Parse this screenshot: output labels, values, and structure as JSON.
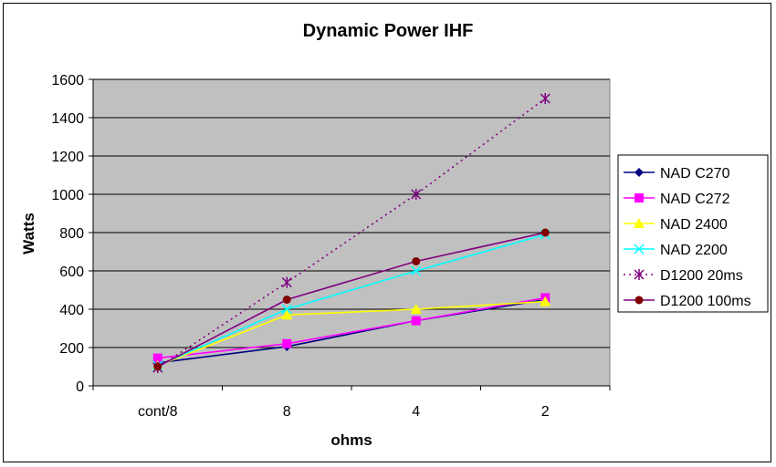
{
  "chart_data": {
    "type": "line",
    "title": "Dynamic Power IHF",
    "xlabel": "ohms",
    "ylabel": "Watts",
    "categories": [
      "cont/8",
      "8",
      "4",
      "2"
    ],
    "ylim": [
      0,
      1600
    ],
    "yticks": [
      0,
      200,
      400,
      600,
      800,
      1000,
      1200,
      1400,
      1600
    ],
    "grid": true,
    "legend_position": "right",
    "plot_background": "#c0c0c0",
    "series": [
      {
        "name": "NAD C270",
        "values": [
          120,
          205,
          340,
          450
        ],
        "color": "#000080",
        "marker": "diamond",
        "dash": "solid"
      },
      {
        "name": "NAD C272",
        "values": [
          145,
          220,
          340,
          460
        ],
        "color": "#ff00ff",
        "marker": "square",
        "dash": "solid"
      },
      {
        "name": "NAD 2400",
        "values": [
          105,
          370,
          400,
          440
        ],
        "color": "#ffff00",
        "marker": "triangle",
        "dash": "solid"
      },
      {
        "name": "NAD 2200",
        "values": [
          105,
          400,
          600,
          790
        ],
        "color": "#00ffff",
        "marker": "x",
        "dash": "solid"
      },
      {
        "name": "D1200 20ms",
        "values": [
          95,
          540,
          1000,
          1500
        ],
        "color": "#800080",
        "marker": "star",
        "dash": "dotted"
      },
      {
        "name": "D1200 100ms",
        "values": [
          100,
          450,
          650,
          800
        ],
        "color": "#800000",
        "marker": "circle",
        "dash": "solid",
        "line_color": "#800080"
      }
    ]
  }
}
